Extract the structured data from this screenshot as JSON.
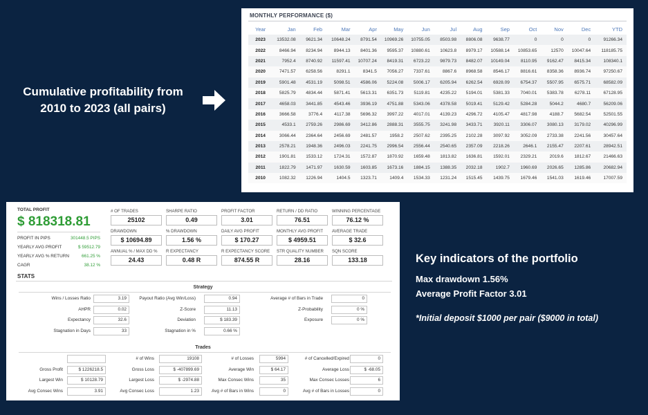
{
  "monthly": {
    "title": "MONTHLY PERFORMANCE ($)",
    "headers": [
      "Year",
      "Jan",
      "Feb",
      "Mar",
      "Apr",
      "May",
      "Jun",
      "Jul",
      "Aug",
      "Sep",
      "Oct",
      "Nov",
      "Dec",
      "YTD"
    ],
    "rows": [
      [
        "2023",
        "13532.08",
        "9621.34",
        "10648.24",
        "8791.54",
        "10969.26",
        "10755.05",
        "8503.98",
        "8806.08",
        "9638.77",
        "0",
        "0",
        "0",
        "91266.34"
      ],
      [
        "2022",
        "8466.94",
        "8234.94",
        "8944.13",
        "8401.36",
        "9595.37",
        "10880.61",
        "10623.8",
        "8979.17",
        "10588.14",
        "10853.65",
        "12570",
        "10047.64",
        "118185.75"
      ],
      [
        "2021",
        "7952.4",
        "8740.92",
        "11597.41",
        "10707.24",
        "8419.31",
        "6723.22",
        "9879.73",
        "8482.07",
        "10149.04",
        "8110.95",
        "9162.47",
        "8415.34",
        "108340.1"
      ],
      [
        "2020",
        "7471.57",
        "6258.56",
        "8291.1",
        "8341.5",
        "7056.27",
        "7337.61",
        "8867.6",
        "8968.58",
        "8546.17",
        "8816.61",
        "8358.36",
        "8936.74",
        "97250.67"
      ],
      [
        "2019",
        "5901.48",
        "4531.19",
        "5098.51",
        "4586.06",
        "5224.08",
        "5006.17",
        "6205.94",
        "6262.54",
        "6928.09",
        "6754.37",
        "5507.95",
        "6575.71",
        "68582.09"
      ],
      [
        "2018",
        "5825.79",
        "4834.44",
        "5871.41",
        "5613.31",
        "6351.73",
        "5119.81",
        "4235.22",
        "5194.01",
        "5381.33",
        "7040.01",
        "5383.78",
        "6278.11",
        "67128.95"
      ],
      [
        "2017",
        "4658.03",
        "3441.85",
        "4543.46",
        "3936.19",
        "4751.88",
        "5343.06",
        "4378.58",
        "5019.41",
        "5129.42",
        "5284.28",
        "5044.2",
        "4680.7",
        "56209.06"
      ],
      [
        "2016",
        "3666.58",
        "3776.4",
        "4117.38",
        "5696.32",
        "3997.22",
        "4017.01",
        "4139.23",
        "4296.72",
        "4105.47",
        "4817.98",
        "4188.7",
        "5682.54",
        "52501.55"
      ],
      [
        "2015",
        "4533.1",
        "2759.26",
        "2986.69",
        "3412.86",
        "2888.31",
        "3555.75",
        "3241.98",
        "3433.71",
        "3920.11",
        "3306.07",
        "3080.13",
        "3179.02",
        "40296.99"
      ],
      [
        "2014",
        "3066.44",
        "2364.64",
        "2456.69",
        "2481.57",
        "1958.2",
        "2507.62",
        "2395.25",
        "2102.28",
        "3097.92",
        "3052.09",
        "2733.38",
        "2241.56",
        "30457.64"
      ],
      [
        "2013",
        "2578.21",
        "1948.36",
        "2496.03",
        "2241.75",
        "2996.54",
        "2556.44",
        "2540.65",
        "2357.09",
        "2218.26",
        "2646.1",
        "2155.47",
        "2207.61",
        "28942.51"
      ],
      [
        "2012",
        "1901.81",
        "1533.12",
        "1724.31",
        "1572.87",
        "1870.92",
        "1659.48",
        "1813.82",
        "1636.81",
        "1592.01",
        "2329.21",
        "2019.6",
        "1812.67",
        "21466.63"
      ],
      [
        "2011",
        "1822.79",
        "1471.97",
        "1630.59",
        "1603.85",
        "1673.16",
        "1884.15",
        "1388.35",
        "2032.18",
        "1902.7",
        "1960.69",
        "2026.65",
        "1285.86",
        "20682.94"
      ],
      [
        "2010",
        "1082.32",
        "1226.94",
        "1404.5",
        "1323.71",
        "1409.4",
        "1534.33",
        "1231.24",
        "1515.45",
        "1439.75",
        "1679.46",
        "1541.03",
        "1619.46",
        "17007.59"
      ]
    ]
  },
  "caption_left": [
    "Cumulative profitability from",
    "2010 to 2023 (all pairs)"
  ],
  "key": {
    "title": "Key indicators of the portfolio",
    "line1": "Max drawdown 1.56%",
    "line2": "Average Profit Factor 3.01",
    "note": "*Initial deposit $1000 per pair ($9000 in total)"
  },
  "report": {
    "total_profit_label": "TOTAL PROFIT",
    "total_profit_value": "$ 818318.81",
    "summary": [
      {
        "label": "PROFIT IN PIPS",
        "value": "301448.5 PIPS"
      },
      {
        "label": "YEARLY AVG PROFIT",
        "value": "$ 59512.79"
      },
      {
        "label": "YEARLY AVG % RETURN",
        "value": "661.25 %"
      },
      {
        "label": "CAGR",
        "value": "38.12 %"
      }
    ],
    "metrics": [
      {
        "label": "# OF TRADES",
        "value": "25102"
      },
      {
        "label": "SHARPE RATIO",
        "value": "0.49"
      },
      {
        "label": "PROFIT FACTOR",
        "value": "3.01"
      },
      {
        "label": "RETURN / DD RATIO",
        "value": "76.51"
      },
      {
        "label": "WINNING PERCENTAGE",
        "value": "76.12 %"
      },
      {
        "label": "DRAWDOWN",
        "value": "$ 10694.89"
      },
      {
        "label": "% DRAWDOWN",
        "value": "1.56 %"
      },
      {
        "label": "DAILY AVG PROFIT",
        "value": "$ 170.27"
      },
      {
        "label": "MONTHLY AVG PROFIT",
        "value": "$ 4959.51"
      },
      {
        "label": "AVERAGE TRADE",
        "value": "$ 32.6"
      },
      {
        "label": "ANNUAL % / MAX DD %",
        "value": "24.43"
      },
      {
        "label": "R EXPECTANCY",
        "value": "0.48 R"
      },
      {
        "label": "R EXPECTANCY SCORE",
        "value": "874.55 R"
      },
      {
        "label": "STR QUALITY NUMBER",
        "value": "28.16"
      },
      {
        "label": "SQN SCORE",
        "value": "133.18"
      }
    ],
    "stats_label": "STATS",
    "strategy_title": "Strategy",
    "strategy": [
      {
        "label": "Wins / Losses Ratio",
        "value": "3.19"
      },
      {
        "label": "Payout Ratio (Avg Win/Loss)",
        "value": "0.94"
      },
      {
        "label": "Average # of Bars in Trade",
        "value": "0"
      },
      {
        "label": "AHPR",
        "value": "0.02"
      },
      {
        "label": "Z-Score",
        "value": "11.13"
      },
      {
        "label": "Z-Probability",
        "value": "0 %"
      },
      {
        "label": "Expectancy",
        "value": "32.6"
      },
      {
        "label": "Deviation",
        "value": "$ 183.39"
      },
      {
        "label": "Exposure",
        "value": "0 %"
      },
      {
        "label": "Stagnation in Days",
        "value": "33"
      },
      {
        "label": "Stagnation in %",
        "value": "0.66 %"
      }
    ],
    "trades_title": "Trades",
    "trades": [
      {
        "label": "",
        "value": ""
      },
      {
        "label": "# of Wins",
        "value": "19108"
      },
      {
        "label": "# of Losses",
        "value": "5994"
      },
      {
        "label": "# of Cancelled/Expired",
        "value": "0"
      },
      {
        "label": "Gross Profit",
        "value": "$ 1226218.5"
      },
      {
        "label": "Gross Loss",
        "value": "$ -407899.69"
      },
      {
        "label": "Average Win",
        "value": "$ 64.17"
      },
      {
        "label": "Average Loss",
        "value": "$ -68.05"
      },
      {
        "label": "Largest Win",
        "value": "$ 10128.79"
      },
      {
        "label": "Largest Loss",
        "value": "$ -2974.88"
      },
      {
        "label": "Max Consec Wins",
        "value": "35"
      },
      {
        "label": "Max Consec Losses",
        "value": "6"
      },
      {
        "label": "Avg Consec Wins",
        "value": "3.91"
      },
      {
        "label": "Avg Consec Loss",
        "value": "1.23"
      },
      {
        "label": "Avg # of Bars in Wins",
        "value": "0"
      },
      {
        "label": "Avg # of Bars in Losses",
        "value": "0"
      }
    ]
  },
  "colors": {
    "background": "#0b2341",
    "profit_green": "#2e9c35",
    "header_blue": "#4a76b8"
  }
}
